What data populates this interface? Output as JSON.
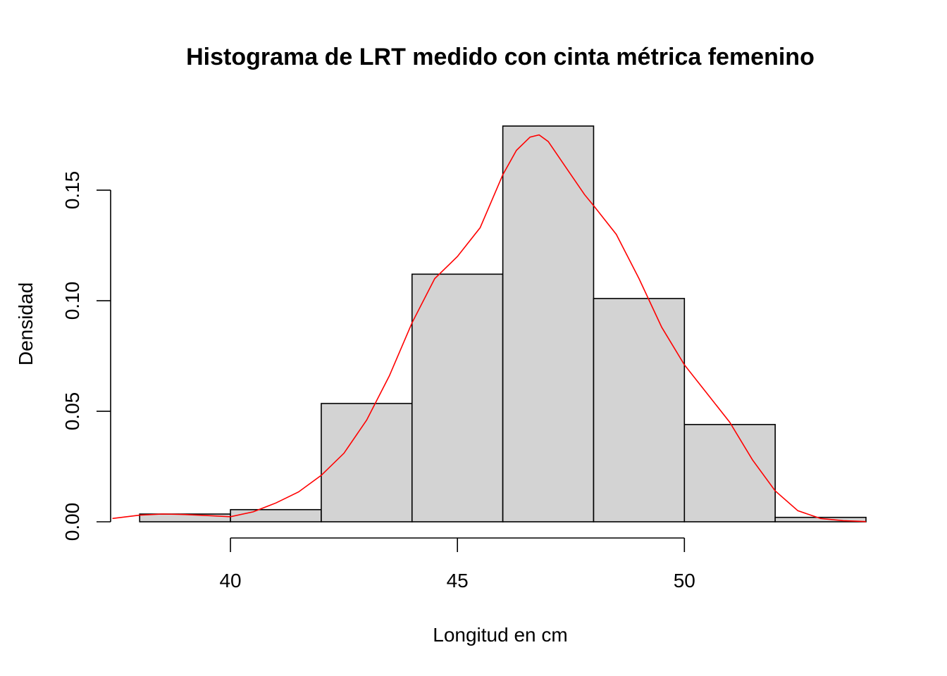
{
  "chart_data": {
    "type": "bar",
    "title": "Histograma de LRT medido con cinta métrica femenino",
    "xlabel": "Longitud en cm",
    "ylabel": "Densidad",
    "xlim": [
      37.36,
      54.0
    ],
    "ylim": [
      0,
      0.179
    ],
    "x_ticks": [
      40,
      45,
      50
    ],
    "x_tick_labels": [
      "40",
      "45",
      "50"
    ],
    "y_ticks": [
      0.0,
      0.05,
      0.1,
      0.15
    ],
    "y_tick_labels": [
      "0.00",
      "0.05",
      "0.10",
      "0.15"
    ],
    "grid": false,
    "bar_color": "#d3d3d3",
    "bar_edge_color": "#000000",
    "bins": [
      {
        "start": 38,
        "end": 40,
        "density": 0.0035
      },
      {
        "start": 40,
        "end": 42,
        "density": 0.0055
      },
      {
        "start": 42,
        "end": 44,
        "density": 0.0535
      },
      {
        "start": 44,
        "end": 46,
        "density": 0.112
      },
      {
        "start": 46,
        "end": 48,
        "density": 0.179
      },
      {
        "start": 48,
        "end": 50,
        "density": 0.101
      },
      {
        "start": 50,
        "end": 52,
        "density": 0.044
      },
      {
        "start": 52,
        "end": 54,
        "density": 0.002
      }
    ],
    "density_curve": {
      "color": "#ff0000",
      "x": [
        37.4,
        38.0,
        38.5,
        39.0,
        39.5,
        40.0,
        40.5,
        41.0,
        41.5,
        42.0,
        42.5,
        43.0,
        43.5,
        44.0,
        44.5,
        45.0,
        45.5,
        46.0,
        46.3,
        46.6,
        46.8,
        47.0,
        47.4,
        47.8,
        48.0,
        48.5,
        49.0,
        49.5,
        50.0,
        50.5,
        51.0,
        51.5,
        52.0,
        52.5,
        53.0,
        53.5,
        54.0
      ],
      "y": [
        0.0015,
        0.003,
        0.0035,
        0.0033,
        0.0028,
        0.0023,
        0.0045,
        0.0085,
        0.0135,
        0.021,
        0.031,
        0.046,
        0.066,
        0.09,
        0.11,
        0.12,
        0.133,
        0.157,
        0.168,
        0.174,
        0.175,
        0.172,
        0.16,
        0.148,
        0.143,
        0.13,
        0.11,
        0.088,
        0.071,
        0.058,
        0.045,
        0.028,
        0.014,
        0.005,
        0.0015,
        0.0005,
        0.0001
      ]
    }
  }
}
